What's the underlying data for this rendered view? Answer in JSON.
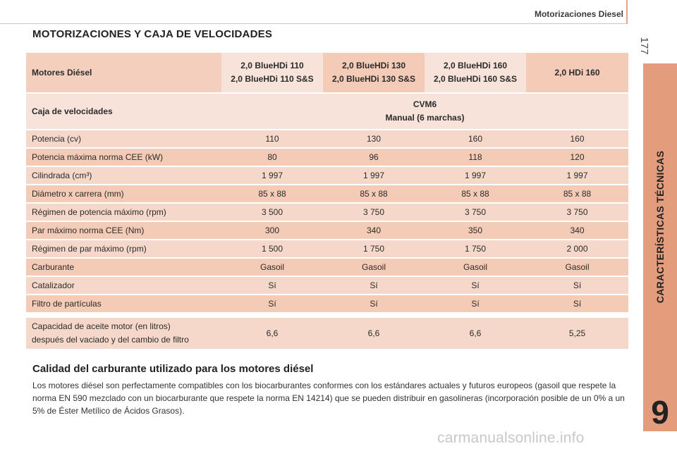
{
  "header": {
    "title": "Motorizaciones Diesel",
    "page_number": "177"
  },
  "section_title": "MOTORIZACIONES Y CAJA DE VELOCIDADES",
  "table": {
    "engine_label": "Motores Diésel",
    "engines": [
      {
        "line1": "2,0 BlueHDi 110",
        "line2": "2,0 BlueHDi 110 S&S"
      },
      {
        "line1": "2,0 BlueHDi 130",
        "line2": "2,0 BlueHDi 130 S&S"
      },
      {
        "line1": "2,0 BlueHDi 160",
        "line2": "2,0 BlueHDi 160 S&S"
      },
      {
        "line1": "2,0 HDi 160",
        "line2": ""
      }
    ],
    "gearbox_label": "Caja de velocidades",
    "gearbox_line1": "CVM6",
    "gearbox_line2": "Manual (6 marchas)",
    "rows": [
      {
        "label": "Potencia (cv)",
        "values": [
          "110",
          "130",
          "160",
          "160"
        ]
      },
      {
        "label": "Potencia máxima norma CEE (kW)",
        "values": [
          "80",
          "96",
          "118",
          "120"
        ]
      },
      {
        "label": "Cilindrada (cm³)",
        "values": [
          "1 997",
          "1 997",
          "1 997",
          "1 997"
        ]
      },
      {
        "label": "Diámetro x carrera (mm)",
        "values": [
          "85 x 88",
          "85 x 88",
          "85 x 88",
          "85 x 88"
        ]
      },
      {
        "label": "Régimen de potencia máximo (rpm)",
        "values": [
          "3 500",
          "3 750",
          "3 750",
          "3 750"
        ]
      },
      {
        "label": "Par máximo norma CEE (Nm)",
        "values": [
          "300",
          "340",
          "350",
          "340"
        ]
      },
      {
        "label": "Régimen de par máximo (rpm)",
        "values": [
          "1 500",
          "1 750",
          "1 750",
          "2 000"
        ]
      },
      {
        "label": "Carburante",
        "values": [
          "Gasoil",
          "Gasoil",
          "Gasoil",
          "Gasoil"
        ]
      },
      {
        "label": "Catalizador",
        "values": [
          "Sí",
          "Sí",
          "Sí",
          "Sí"
        ]
      },
      {
        "label": "Filtro de partículas",
        "values": [
          "Sí",
          "Sí",
          "Sí",
          "Sí"
        ]
      }
    ],
    "oil_label_line1": "Capacidad de aceite motor (en litros)",
    "oil_label_line2": "después del vaciado y del cambio de filtro",
    "oil_values": [
      "6,6",
      "6,6",
      "6,6",
      "5,25"
    ]
  },
  "subheading": "Calidad del carburante utilizado para los motores diésel",
  "paragraph": "Los motores diésel son perfectamente compatibles con los biocarburantes conformes con los estándares actuales y futuros europeos (gasoil que respete la norma EN 590 mezclado con un biocarburante que respete la norma EN 14214) que se pueden distribuir en gasolineras (incorporación posible de un 0% a un 5% de Éster Metílico de Ácidos Grasos).",
  "sidebar": {
    "chapter_title": "CARACTERÍSTICAS TÉCNICAS",
    "chapter_number": "9"
  },
  "watermark": "carmanualsonline.info",
  "colors": {
    "accent": "#e49d7c",
    "cell_light": "#f7e3da",
    "cell_dark": "#f3cbb7"
  }
}
